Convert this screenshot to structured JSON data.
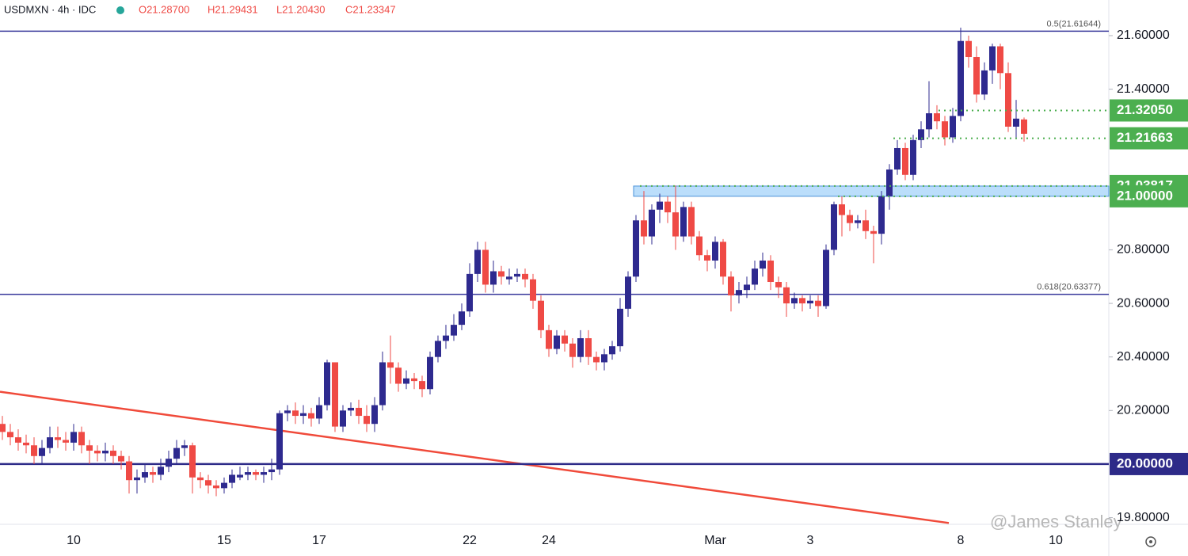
{
  "header": {
    "symbol": "USDMXN · 4h · IDC",
    "ohlc": [
      "O21.28700",
      "H21.29431",
      "L21.20430",
      "C21.23347"
    ]
  },
  "watermark": "@James Stanley",
  "chart_data": {
    "type": "candlestick",
    "up_color": "#2e2a8f",
    "down_color": "#ef4a45",
    "categories": [
      null,
      null,
      null,
      null,
      null,
      null,
      null,
      null,
      null,
      "10",
      null,
      null,
      null,
      null,
      null,
      null,
      null,
      null,
      null,
      null,
      null,
      null,
      null,
      null,
      null,
      null,
      null,
      null,
      "15",
      null,
      null,
      null,
      null,
      null,
      null,
      null,
      null,
      null,
      null,
      null,
      "17",
      null,
      null,
      null,
      null,
      null,
      null,
      null,
      null,
      null,
      null,
      null,
      null,
      null,
      null,
      null,
      null,
      null,
      null,
      "22",
      null,
      null,
      null,
      null,
      null,
      null,
      null,
      null,
      null,
      "24",
      null,
      null,
      null,
      null,
      null,
      null,
      null,
      null,
      null,
      null,
      null,
      null,
      null,
      null,
      null,
      null,
      null,
      null,
      null,
      null,
      "Mar",
      null,
      null,
      null,
      null,
      null,
      null,
      null,
      null,
      null,
      null,
      null,
      "3",
      null,
      null,
      null,
      null,
      null,
      null,
      null,
      null,
      null,
      null,
      null,
      null,
      null,
      null,
      null,
      null,
      null,
      null,
      "8",
      null,
      null,
      null,
      null,
      null,
      null,
      null,
      null,
      null,
      null,
      null,
      "10",
      null
    ],
    "open": [
      20.15,
      20.12,
      20.1,
      20.08,
      20.07,
      20.03,
      20.06,
      20.1,
      20.09,
      20.08,
      20.12,
      20.07,
      20.05,
      20.04,
      20.05,
      20.03,
      20.01,
      19.94,
      19.95,
      19.97,
      19.96,
      19.99,
      20.02,
      20.06,
      20.07,
      19.95,
      19.94,
      19.92,
      19.91,
      19.93,
      19.95,
      19.96,
      19.97,
      19.96,
      19.97,
      19.98,
      20.19,
      20.2,
      20.18,
      20.19,
      20.17,
      20.22,
      20.38,
      20.14,
      20.2,
      20.21,
      20.18,
      20.15,
      20.22,
      20.38,
      20.36,
      20.3,
      20.32,
      20.31,
      20.28,
      20.4,
      20.46,
      20.48,
      20.52,
      20.57,
      20.71,
      20.8,
      20.67,
      20.72,
      20.69,
      20.7,
      20.71,
      20.69,
      20.61,
      20.5,
      20.43,
      20.48,
      20.45,
      20.4,
      20.47,
      20.4,
      20.38,
      20.41,
      20.44,
      20.58,
      20.7,
      20.91,
      20.85,
      20.95,
      20.98,
      20.94,
      20.85,
      20.96,
      20.85,
      20.78,
      20.76,
      20.83,
      20.7,
      20.63,
      20.65,
      20.67,
      20.73,
      20.76,
      20.68,
      20.66,
      20.6,
      20.62,
      20.6,
      20.61,
      20.59,
      20.8,
      20.97,
      20.93,
      20.9,
      20.91,
      20.87,
      20.86,
      21.0,
      21.1,
      21.18,
      21.08,
      21.21,
      21.25,
      21.31,
      21.28,
      21.22,
      21.3,
      21.58,
      21.52,
      21.38,
      21.47,
      21.56,
      21.46,
      21.26,
      21.287,
      null,
      null,
      null,
      null,
      null
    ],
    "high": [
      20.18,
      20.15,
      20.13,
      20.11,
      20.1,
      20.09,
      20.14,
      20.14,
      20.12,
      20.15,
      20.14,
      20.09,
      20.07,
      20.08,
      20.07,
      20.05,
      20.03,
      19.98,
      20.0,
      19.99,
      20.02,
      20.05,
      20.09,
      20.09,
      20.08,
      19.97,
      19.96,
      19.94,
      19.95,
      19.98,
      19.99,
      19.99,
      19.98,
      19.99,
      20.02,
      20.2,
      20.22,
      20.23,
      20.22,
      20.21,
      20.25,
      20.39,
      20.38,
      20.22,
      20.23,
      20.24,
      20.22,
      20.25,
      20.42,
      20.48,
      20.38,
      20.35,
      20.34,
      20.33,
      20.42,
      20.48,
      20.52,
      20.56,
      20.6,
      20.75,
      20.83,
      20.83,
      20.76,
      20.74,
      20.73,
      20.73,
      20.73,
      20.71,
      20.63,
      20.52,
      20.5,
      20.5,
      20.47,
      20.5,
      20.5,
      20.42,
      20.43,
      20.46,
      20.62,
      20.72,
      20.93,
      21.02,
      20.97,
      21.01,
      21.0,
      21.04,
      20.98,
      20.98,
      20.87,
      20.8,
      20.85,
      20.84,
      20.72,
      20.68,
      20.7,
      20.76,
      20.79,
      20.78,
      20.7,
      20.68,
      20.64,
      20.63,
      20.63,
      20.63,
      20.82,
      20.98,
      21.0,
      20.95,
      20.93,
      20.95,
      20.89,
      21.02,
      21.12,
      21.21,
      21.2,
      21.23,
      21.28,
      21.43,
      21.34,
      21.3,
      21.33,
      21.63,
      21.6,
      21.56,
      21.5,
      21.57,
      21.57,
      21.5,
      21.36,
      21.29431,
      null,
      null,
      null,
      null,
      null
    ],
    "low": [
      20.09,
      20.07,
      20.05,
      20.04,
      20.0,
      20.0,
      20.04,
      20.06,
      20.05,
      20.05,
      20.04,
      20.0,
      20.01,
      20.01,
      20.0,
      19.98,
      19.89,
      19.89,
      19.93,
      19.93,
      19.94,
      19.97,
      20.0,
      20.03,
      19.89,
      19.91,
      19.89,
      19.88,
      19.89,
      19.91,
      19.94,
      19.94,
      19.94,
      19.93,
      19.94,
      19.96,
      20.16,
      20.15,
      20.15,
      20.14,
      20.15,
      20.2,
      20.12,
      20.12,
      20.18,
      20.15,
      20.12,
      20.12,
      20.2,
      20.3,
      20.27,
      20.28,
      20.28,
      20.25,
      20.26,
      20.38,
      20.43,
      20.46,
      20.5,
      20.55,
      20.68,
      20.64,
      20.64,
      20.67,
      20.67,
      20.68,
      20.66,
      20.58,
      20.47,
      20.4,
      20.41,
      20.42,
      20.36,
      20.38,
      20.37,
      20.35,
      20.35,
      20.39,
      20.42,
      20.55,
      20.68,
      20.82,
      20.82,
      20.9,
      20.9,
      20.8,
      20.83,
      20.82,
      20.76,
      20.72,
      20.73,
      20.67,
      20.57,
      20.6,
      20.62,
      20.65,
      20.7,
      20.65,
      20.62,
      20.55,
      20.58,
      20.57,
      20.58,
      20.55,
      20.58,
      20.78,
      20.85,
      20.87,
      20.88,
      20.84,
      20.75,
      20.82,
      20.95,
      21.08,
      21.06,
      21.06,
      21.18,
      21.22,
      21.25,
      21.19,
      21.2,
      21.28,
      21.48,
      21.35,
      21.36,
      21.42,
      21.4,
      21.24,
      21.22,
      21.2043,
      null,
      null,
      null,
      null,
      null
    ],
    "close": [
      20.12,
      20.1,
      20.08,
      20.07,
      20.03,
      20.06,
      20.1,
      20.09,
      20.08,
      20.12,
      20.07,
      20.05,
      20.04,
      20.05,
      20.03,
      20.01,
      19.94,
      19.95,
      19.97,
      19.96,
      19.99,
      20.02,
      20.06,
      20.07,
      19.95,
      19.94,
      19.92,
      19.91,
      19.93,
      19.96,
      19.96,
      19.97,
      19.96,
      19.97,
      19.98,
      20.19,
      20.2,
      20.18,
      20.19,
      20.17,
      20.22,
      20.38,
      20.14,
      20.2,
      20.21,
      20.18,
      20.15,
      20.22,
      20.38,
      20.36,
      20.3,
      20.32,
      20.31,
      20.28,
      20.4,
      20.46,
      20.48,
      20.52,
      20.57,
      20.71,
      20.8,
      20.67,
      20.72,
      20.7,
      20.7,
      20.71,
      20.69,
      20.61,
      20.5,
      20.43,
      20.48,
      20.45,
      20.4,
      20.47,
      20.4,
      20.38,
      20.41,
      20.44,
      20.58,
      20.7,
      20.91,
      20.85,
      20.95,
      20.98,
      20.94,
      20.85,
      20.96,
      20.85,
      20.78,
      20.76,
      20.83,
      20.7,
      20.63,
      20.65,
      20.67,
      20.73,
      20.76,
      20.68,
      20.66,
      20.6,
      20.62,
      20.6,
      20.61,
      20.59,
      20.8,
      20.97,
      20.93,
      20.9,
      20.91,
      20.87,
      20.86,
      21.0,
      21.1,
      21.18,
      21.08,
      21.21,
      21.25,
      21.31,
      21.28,
      21.22,
      21.3,
      21.58,
      21.52,
      21.38,
      21.47,
      21.56,
      21.46,
      21.26,
      21.29,
      21.23347,
      null,
      null,
      null,
      null,
      null
    ],
    "ylim": [
      19.775,
      21.733
    ],
    "yticks": [
      {
        "value": 19.8,
        "label": "19.80000"
      },
      {
        "value": 20.2,
        "label": "20.20000"
      },
      {
        "value": 20.4,
        "label": "20.40000"
      },
      {
        "value": 20.6,
        "label": "20.60000"
      },
      {
        "value": 20.8,
        "label": "20.80000"
      },
      {
        "value": 21.4,
        "label": "21.40000"
      },
      {
        "value": 21.6,
        "label": "21.60000"
      }
    ],
    "fib_levels": [
      {
        "value": 21.61644,
        "label": "0.5(21.61644)"
      },
      {
        "value": 20.63377,
        "label": "0.618(20.63377)"
      }
    ],
    "line_color": "#3a3a9c",
    "price_levels": [
      {
        "value": 21.3205,
        "label": "21.32050"
      },
      {
        "value": 21.21663,
        "label": "21.21663"
      },
      {
        "value": 21.03817,
        "label": "21.03817"
      },
      {
        "value": 21.0,
        "label": "21.00000"
      }
    ],
    "level_color": "#4caf50",
    "support": {
      "value": 20.0,
      "label": "20.00000",
      "color": "#2d2a88"
    },
    "trendline": {
      "values": [
        20.27,
        19.78
      ],
      "color": "#f04a3a"
    }
  }
}
